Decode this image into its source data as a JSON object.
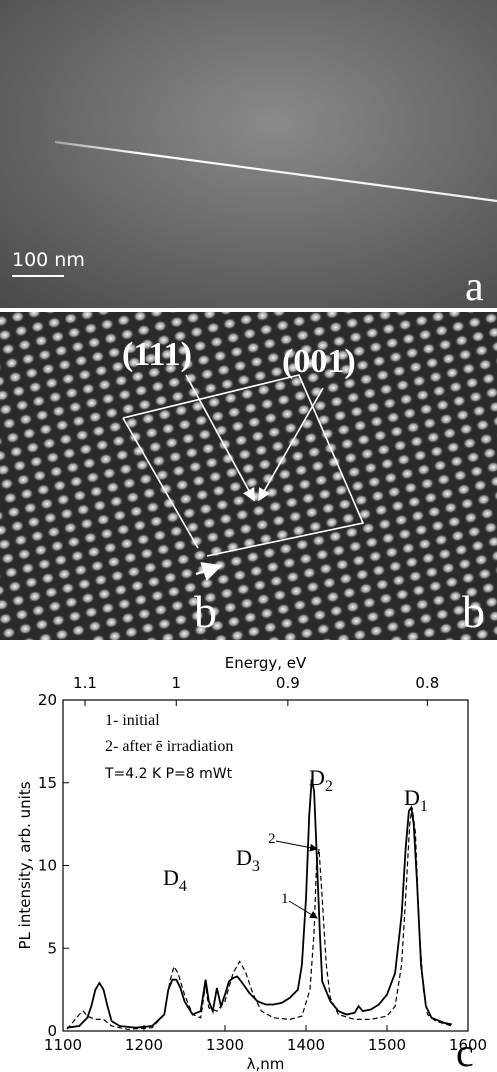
{
  "panel_a": {
    "scale_bar": "100 nm",
    "label": "a"
  },
  "panel_b": {
    "directions": [
      "(111)",
      "(001)"
    ],
    "vector_label": "b",
    "label": "b"
  },
  "panel_c_label": "c",
  "chart_data": {
    "type": "line",
    "x_label": "λ,nm",
    "y_label": "PL intensity, arb. units",
    "x2_label": "Energy, eV",
    "xlim": [
      1100,
      1600
    ],
    "xticks": [
      1100,
      1200,
      1300,
      1400,
      1500,
      1600
    ],
    "ylim": [
      0,
      20
    ],
    "yticks": [
      0,
      5,
      10,
      15,
      20
    ],
    "x2ticks": [
      1.1,
      1,
      0.9,
      0.8
    ],
    "series": [
      {
        "name": "1- initial",
        "color": "#000000",
        "dash": true,
        "x": [
          1105,
          1120,
          1125,
          1130,
          1140,
          1150,
          1160,
          1180,
          1210,
          1225,
          1232,
          1237,
          1242,
          1250,
          1260,
          1270,
          1276,
          1280,
          1290,
          1300,
          1310,
          1318,
          1325,
          1335,
          1345,
          1360,
          1380,
          1395,
          1405,
          1410,
          1413,
          1416,
          1420,
          1425,
          1430,
          1440,
          1460,
          1480,
          1500,
          1510,
          1518,
          1523,
          1528,
          1531,
          1535,
          1540,
          1545,
          1550,
          1560,
          1580
        ],
        "values": [
          0.1,
          1.0,
          1.2,
          0.9,
          0.7,
          0.7,
          0.3,
          0.1,
          0.2,
          1.0,
          3.0,
          3.9,
          3.5,
          2.2,
          1.0,
          0.8,
          2.8,
          1.4,
          1.2,
          1.8,
          3.5,
          4.2,
          3.6,
          2.2,
          1.2,
          0.8,
          0.7,
          0.9,
          2.5,
          6,
          10,
          11,
          8,
          4,
          2,
          1.0,
          0.7,
          0.7,
          0.9,
          1.5,
          4,
          8,
          12.5,
          13.5,
          12,
          6,
          2.5,
          1.0,
          0.6,
          0.3
        ]
      },
      {
        "name": "2- after ē irradiation",
        "color": "#000000",
        "dash": false,
        "x": [
          1105,
          1120,
          1130,
          1135,
          1140,
          1145,
          1150,
          1155,
          1160,
          1170,
          1190,
          1210,
          1225,
          1230,
          1235,
          1240,
          1245,
          1250,
          1260,
          1270,
          1276,
          1280,
          1285,
          1290,
          1295,
          1300,
          1305,
          1310,
          1315,
          1320,
          1330,
          1340,
          1350,
          1360,
          1370,
          1380,
          1390,
          1395,
          1400,
          1404,
          1407,
          1410,
          1413,
          1417,
          1420,
          1430,
          1440,
          1450,
          1460,
          1465,
          1470,
          1480,
          1490,
          1500,
          1510,
          1518,
          1523,
          1527,
          1530,
          1533,
          1537,
          1542,
          1548,
          1555,
          1570,
          1580
        ],
        "values": [
          0.2,
          0.3,
          0.8,
          1.5,
          2.5,
          2.9,
          2.5,
          1.5,
          0.6,
          0.3,
          0.2,
          0.3,
          1.0,
          2.5,
          3.1,
          3.1,
          2.6,
          1.8,
          1.0,
          1.2,
          3.1,
          1.8,
          1.2,
          2.6,
          1.5,
          2.2,
          3.0,
          3.2,
          3.3,
          3.0,
          2.3,
          1.8,
          1.6,
          1.6,
          1.7,
          2.0,
          2.5,
          4.0,
          8,
          13,
          15.2,
          14.5,
          11,
          6,
          3,
          1.8,
          1.2,
          1.0,
          1.1,
          1.5,
          1.2,
          1.3,
          1.6,
          2.2,
          3.5,
          7,
          11,
          13.3,
          13.5,
          12.5,
          9,
          4,
          1.5,
          0.8,
          0.5,
          0.4
        ]
      }
    ],
    "condition": "T=4.2 K  P=8 mWt",
    "peak_labels": [
      {
        "text": "D",
        "subscript": "1"
      },
      {
        "text": "D",
        "subscript": "2"
      },
      {
        "text": "D",
        "subscript": "3"
      },
      {
        "text": "D",
        "subscript": "4"
      }
    ],
    "curve_labels": [
      "1",
      "2"
    ]
  }
}
